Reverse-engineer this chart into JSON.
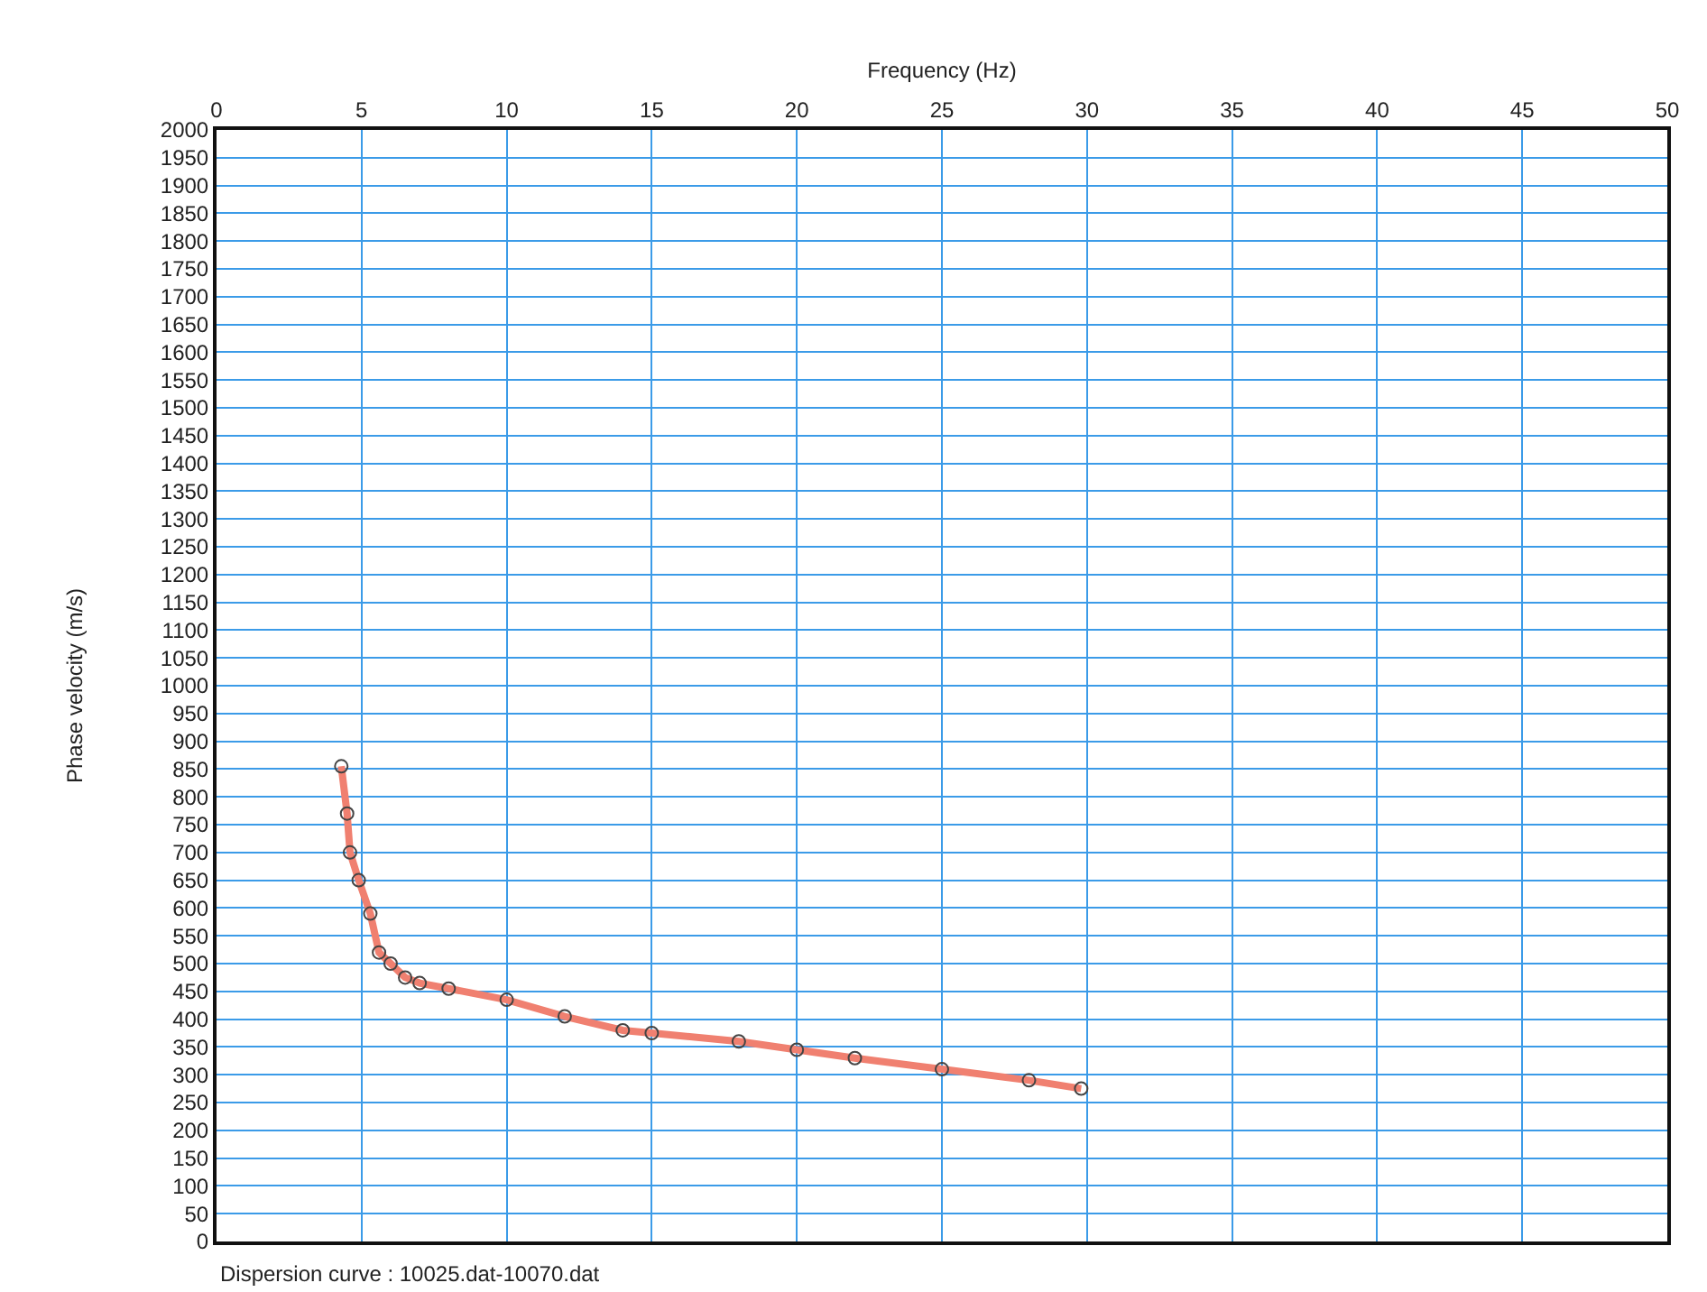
{
  "chart_data": {
    "type": "line",
    "xlabel": "Frequency (Hz)",
    "ylabel": "Phase velocity (m/s)",
    "xlim": [
      0,
      50
    ],
    "xticks": [
      0,
      5,
      10,
      15,
      20,
      25,
      30,
      35,
      40,
      45,
      50
    ],
    "ylim": [
      0,
      2000
    ],
    "yticks": [
      0,
      50,
      100,
      150,
      200,
      250,
      300,
      350,
      400,
      450,
      500,
      550,
      600,
      650,
      700,
      750,
      800,
      850,
      900,
      950,
      1000,
      1050,
      1100,
      1150,
      1200,
      1250,
      1300,
      1350,
      1400,
      1450,
      1500,
      1550,
      1600,
      1650,
      1700,
      1750,
      1800,
      1850,
      1900,
      1950,
      2000
    ],
    "grid": true,
    "marker": "circle",
    "line_style": "solid",
    "x": [
      4.3,
      4.5,
      4.6,
      4.9,
      5.3,
      5.6,
      6,
      6.5,
      7,
      8,
      10,
      12,
      14,
      15,
      18,
      20,
      22,
      25,
      28,
      29.8
    ],
    "series": [
      {
        "color": "#f08070",
        "values": [
          855,
          770,
          700,
          650,
          590,
          520,
          500,
          475,
          465,
          455,
          435,
          405,
          380,
          375,
          360,
          345,
          330,
          310,
          290,
          275
        ]
      }
    ],
    "annotations": [
      "Dispersion curve : 10025.dat-10070.dat"
    ]
  }
}
